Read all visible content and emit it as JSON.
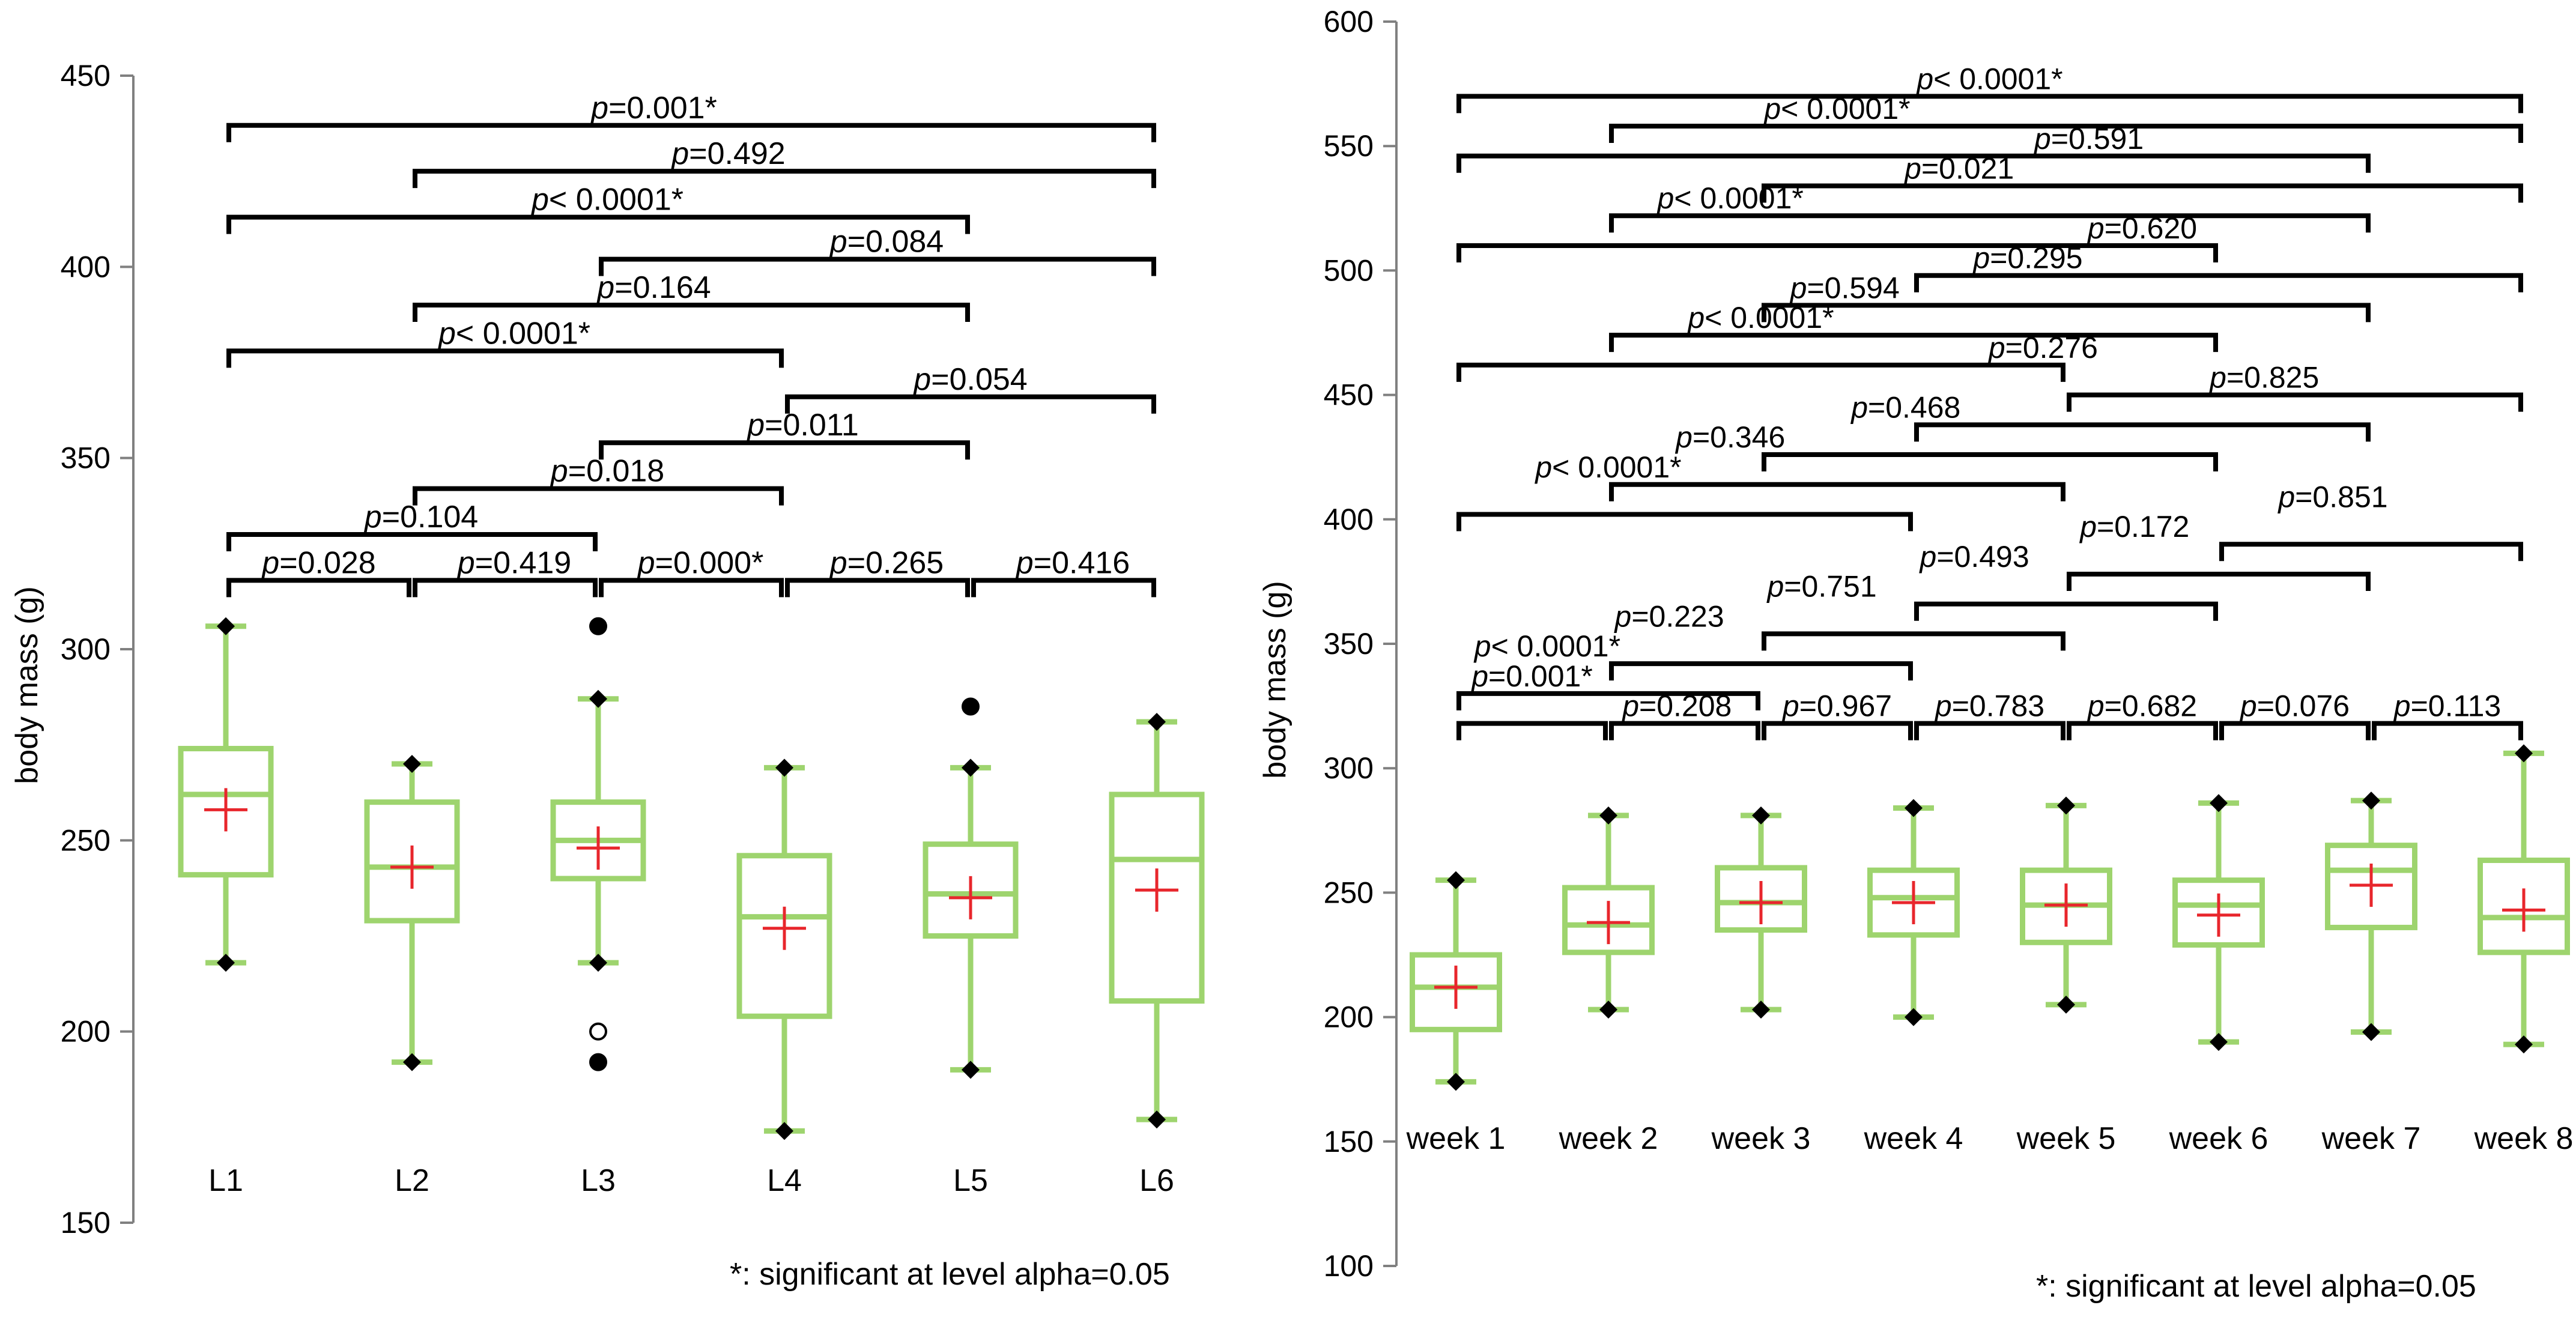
{
  "colors": {
    "box": "#9ed46e",
    "mean": "#e8262c",
    "axis": "#808080",
    "bracket": "#000000",
    "text": "#000000"
  },
  "chart_data": [
    {
      "type": "box",
      "ylabel": "body mass (g)",
      "ylim": [
        150,
        450
      ],
      "yticks": [
        "150",
        "200",
        "250",
        "300",
        "350",
        "400",
        "450"
      ],
      "categories": [
        "L1",
        "L2",
        "L3",
        "L4",
        "L5",
        "L6"
      ],
      "boxes": [
        {
          "min": 218,
          "q1": 241,
          "median": 262,
          "q3": 274,
          "max": 306,
          "mean": 258
        },
        {
          "min": 192,
          "q1": 229,
          "median": 243,
          "q3": 260,
          "max": 270,
          "mean": 243
        },
        {
          "min": 218,
          "q1": 240,
          "median": 250,
          "q3": 260,
          "max": 287,
          "mean": 248
        },
        {
          "min": 174,
          "q1": 204,
          "median": 230,
          "q3": 246,
          "max": 269,
          "mean": 227
        },
        {
          "min": 190,
          "q1": 225,
          "median": 236,
          "q3": 249,
          "max": 269,
          "mean": 235
        },
        {
          "min": 177,
          "q1": 208,
          "median": 245,
          "q3": 262,
          "max": 281,
          "mean": 237
        }
      ],
      "outliers": [
        {
          "cat": 2,
          "value": 306,
          "filled": true
        },
        {
          "cat": 2,
          "value": 200,
          "filled": false
        },
        {
          "cat": 2,
          "value": 192,
          "filled": true
        },
        {
          "cat": 4,
          "value": 285,
          "filled": true
        }
      ],
      "comparisons": [
        {
          "from": 0,
          "to": 5,
          "y": 437,
          "prefix": "p",
          "text": "=0.001*",
          "label_at": 2.3
        },
        {
          "from": 1,
          "to": 5,
          "y": 425,
          "prefix": "p",
          "text": "=0.492",
          "label_at": 2.7
        },
        {
          "from": 0,
          "to": 4,
          "y": 413,
          "prefix": "p",
          "text": "< 0.0001*",
          "label_at": 2.05
        },
        {
          "from": 2,
          "to": 5,
          "y": 402,
          "prefix": "p",
          "text": "=0.084",
          "label_at": 3.55
        },
        {
          "from": 1,
          "to": 4,
          "y": 390,
          "prefix": "p",
          "text": "=0.164",
          "label_at": 2.3
        },
        {
          "from": 0,
          "to": 3,
          "y": 378,
          "prefix": "p",
          "text": "< 0.0001*",
          "label_at": 1.55
        },
        {
          "from": 3,
          "to": 5,
          "y": 366,
          "prefix": "p",
          "text": "=0.054",
          "label_at": 4.0
        },
        {
          "from": 2,
          "to": 4,
          "y": 354,
          "prefix": "p",
          "text": "=0.011",
          "label_at": 3.1
        },
        {
          "from": 1,
          "to": 3,
          "y": 342,
          "prefix": "p",
          "text": "=0.018",
          "label_at": 2.05
        },
        {
          "from": 0,
          "to": 2,
          "y": 330,
          "prefix": "p",
          "text": "=0.104",
          "label_at": 1.05
        },
        {
          "from": 0,
          "to": 1,
          "y": 318,
          "prefix": "p",
          "text": "=0.028",
          "label_at": 0.5
        },
        {
          "from": 1,
          "to": 2,
          "y": 318,
          "prefix": "p",
          "text": "=0.419",
          "label_at": 1.55
        },
        {
          "from": 2,
          "to": 3,
          "y": 318,
          "prefix": "p",
          "text": "=0.000*",
          "label_at": 2.55
        },
        {
          "from": 3,
          "to": 4,
          "y": 318,
          "prefix": "p",
          "text": "=0.265",
          "label_at": 3.55
        },
        {
          "from": 4,
          "to": 5,
          "y": 318,
          "prefix": "p",
          "text": "=0.416",
          "label_at": 4.55
        }
      ],
      "footnote": "*: significant at level alpha=0.05"
    },
    {
      "type": "box",
      "ylabel": "body mass (g)",
      "ylim": [
        100,
        600
      ],
      "yticks": [
        "100",
        "150",
        "200",
        "250",
        "300",
        "350",
        "400",
        "450",
        "500",
        "550",
        "600"
      ],
      "categories": [
        "week 1",
        "week 2",
        "week 3",
        "week 4",
        "week 5",
        "week 6",
        "week 7",
        "week 8"
      ],
      "boxes": [
        {
          "min": 174,
          "q1": 195,
          "median": 212,
          "q3": 225,
          "max": 255,
          "mean": 212
        },
        {
          "min": 203,
          "q1": 226,
          "median": 237,
          "q3": 252,
          "max": 281,
          "mean": 238
        },
        {
          "min": 203,
          "q1": 235,
          "median": 246,
          "q3": 260,
          "max": 281,
          "mean": 246
        },
        {
          "min": 200,
          "q1": 233,
          "median": 248,
          "q3": 259,
          "max": 284,
          "mean": 246
        },
        {
          "min": 205,
          "q1": 230,
          "median": 245,
          "q3": 259,
          "max": 285,
          "mean": 245
        },
        {
          "min": 190,
          "q1": 229,
          "median": 245,
          "q3": 255,
          "max": 286,
          "mean": 241
        },
        {
          "min": 194,
          "q1": 236,
          "median": 259,
          "q3": 269,
          "max": 287,
          "mean": 253
        },
        {
          "min": 189,
          "q1": 226,
          "median": 240,
          "q3": 263,
          "max": 306,
          "mean": 243
        }
      ],
      "outliers": [],
      "comparisons": [
        {
          "from": 0,
          "to": 7,
          "y": 570,
          "prefix": "p",
          "text": "< 0.0001*",
          "label_at": 3.5
        },
        {
          "from": 1,
          "to": 7,
          "y": 558,
          "prefix": "p",
          "text": "< 0.0001*",
          "label_at": 2.5
        },
        {
          "from": 0,
          "to": 6,
          "y": 546,
          "prefix": "p",
          "text": "=0.591",
          "label_at": 4.15
        },
        {
          "from": 2,
          "to": 7,
          "y": 534,
          "prefix": "p",
          "text": "=0.021",
          "label_at": 3.3
        },
        {
          "from": 1,
          "to": 6,
          "y": 522,
          "prefix": "p",
          "text": "< 0.0001*",
          "label_at": 1.8
        },
        {
          "from": 0,
          "to": 5,
          "y": 510,
          "prefix": "p",
          "text": "=0.620",
          "label_at": 4.5
        },
        {
          "from": 3,
          "to": 7,
          "y": 498,
          "prefix": "p",
          "text": "=0.295",
          "label_at": 3.75
        },
        {
          "from": 2,
          "to": 6,
          "y": 486,
          "prefix": "p",
          "text": "=0.594",
          "label_at": 2.55
        },
        {
          "from": 1,
          "to": 5,
          "y": 474,
          "prefix": "p",
          "text": "< 0.0001*",
          "label_at": 2.0
        },
        {
          "from": 0,
          "to": 4,
          "y": 462,
          "prefix": "p",
          "text": "=0.276",
          "label_at": 3.85
        },
        {
          "from": 4,
          "to": 7,
          "y": 450,
          "prefix": "p",
          "text": "=0.825",
          "label_at": 5.3
        },
        {
          "from": 3,
          "to": 6,
          "y": 438,
          "prefix": "p",
          "text": "=0.468",
          "label_at": 2.95
        },
        {
          "from": 2,
          "to": 5,
          "y": 426,
          "prefix": "p",
          "text": "=0.346",
          "label_at": 1.8
        },
        {
          "from": 1,
          "to": 4,
          "y": 414,
          "prefix": "p",
          "text": "< 0.0001*",
          "label_at": 1.0
        },
        {
          "from": 0,
          "to": 3,
          "y": 402,
          "prefix": "p",
          "text": "=0.851",
          "label_at": 5.75
        },
        {
          "from": 5,
          "to": 7,
          "y": 390,
          "prefix": "p",
          "text": "=0.172",
          "label_at": 4.45
        },
        {
          "from": 4,
          "to": 6,
          "y": 378,
          "prefix": "p",
          "text": "=0.493",
          "label_at": 3.4
        },
        {
          "from": 3,
          "to": 5,
          "y": 366,
          "prefix": "p",
          "text": "=0.751",
          "label_at": 2.4
        },
        {
          "from": 2,
          "to": 4,
          "y": 354,
          "prefix": "p",
          "text": "=0.223",
          "label_at": 1.4
        },
        {
          "from": 1,
          "to": 3,
          "y": 342,
          "prefix": "p",
          "text": "< 0.0001*",
          "label_at": 0.6
        },
        {
          "from": 0,
          "to": 2,
          "y": 330,
          "prefix": "p",
          "text": "=0.001*",
          "label_at": 0.5
        },
        {
          "from": 0,
          "to": 1,
          "y": 318,
          "prefix": "p",
          "text": "=0.208",
          "label_at": 1.45
        },
        {
          "from": 1,
          "to": 2,
          "y": 318,
          "prefix": "p",
          "text": "",
          "label_at": 1.5
        },
        {
          "from": 2,
          "to": 3,
          "y": 318,
          "prefix": "p",
          "text": "=0.967",
          "label_at": 2.5
        },
        {
          "from": 3,
          "to": 4,
          "y": 318,
          "prefix": "p",
          "text": "=0.783",
          "label_at": 3.5
        },
        {
          "from": 4,
          "to": 5,
          "y": 318,
          "prefix": "p",
          "text": "=0.682",
          "label_at": 4.5
        },
        {
          "from": 5,
          "to": 6,
          "y": 318,
          "prefix": "p",
          "text": "=0.076",
          "label_at": 5.5
        },
        {
          "from": 6,
          "to": 7,
          "y": 318,
          "prefix": "p",
          "text": "=0.113",
          "label_at": 6.5
        }
      ],
      "footnote": "*: significant at level alpha=0.05"
    }
  ]
}
